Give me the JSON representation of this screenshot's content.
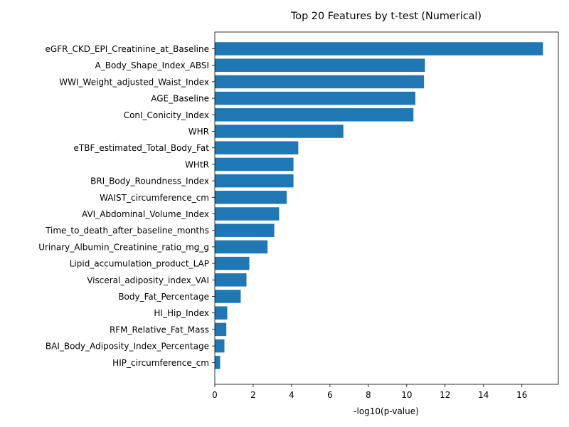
{
  "chart_data": {
    "type": "bar",
    "orientation": "horizontal",
    "title": "Top 20 Features by t-test (Numerical)",
    "xlabel": "-log10(p-value)",
    "ylabel": "",
    "xlim": [
      0,
      17.9
    ],
    "xticks": [
      0,
      2,
      4,
      6,
      8,
      10,
      12,
      14,
      16
    ],
    "grid": false,
    "bar_color": "#1f77b4",
    "categories": [
      "eGFR_CKD_EPI_Creatinine_at_Baseline",
      "A_Body_Shape_Index_ABSI",
      "WWI_Weight_adjusted_Waist_Index",
      "AGE_Baseline",
      "ConI_Conicity_Index",
      "WHR",
      "eTBF_estimated_Total_Body_Fat",
      "WHtR",
      "BRI_Body_Roundness_Index",
      "WAIST_circumference_cm",
      "AVI_Abdominal_Volume_Index",
      "Time_to_death_after_baseline_months",
      "Urinary_Albumin_Creatinine_ratio_mg_g",
      "Lipid_accumulation_product_LAP",
      "Visceral_adiposity_index_VAI",
      "Body_Fat_Percentage",
      "HI_Hip_Index",
      "RFM_Relative_Fat_Mass",
      "BAI_Body_Adiposity_Index_Percentage",
      "HIP_circumference_cm"
    ],
    "values": [
      17.1,
      10.95,
      10.9,
      10.45,
      10.35,
      6.7,
      4.35,
      4.1,
      4.1,
      3.75,
      3.35,
      3.1,
      2.75,
      1.8,
      1.65,
      1.35,
      0.65,
      0.6,
      0.5,
      0.28
    ]
  }
}
